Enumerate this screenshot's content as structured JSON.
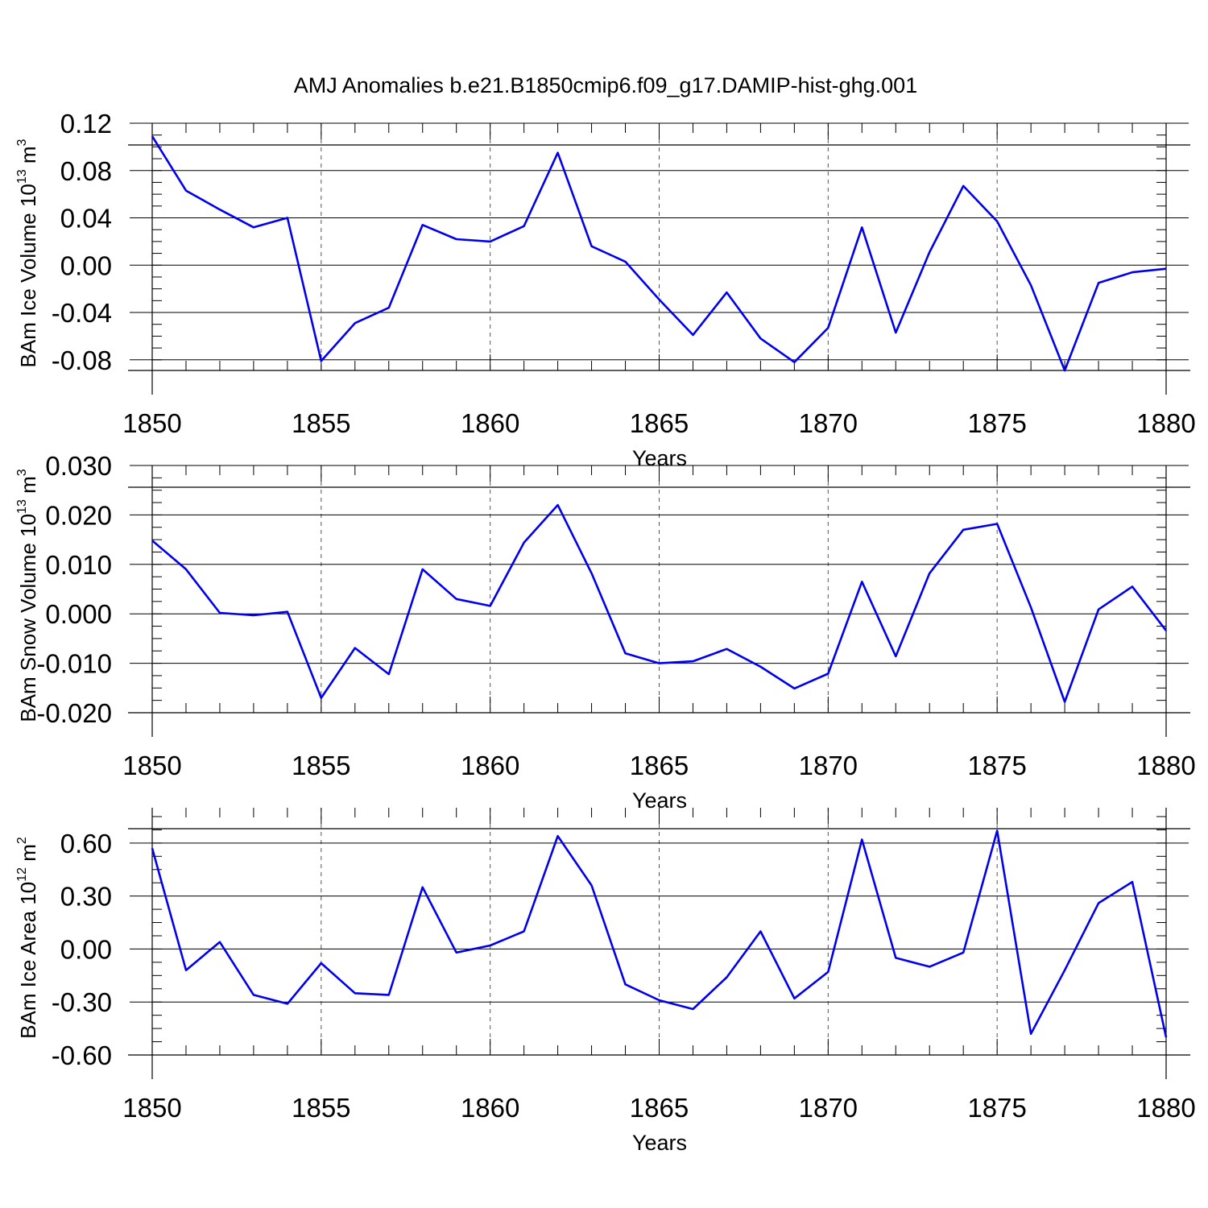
{
  "figure": {
    "title": "AMJ Anomalies b.e21.B1850cmip6.f09_g17.DAMIP-hist-ghg.001"
  },
  "chart_data": [
    {
      "type": "line",
      "ylabel": {
        "text": "BAm Ice Volume 10",
        "sup1": "13",
        "mid": " m",
        "sup2": "3"
      },
      "xlabel": "Years",
      "xlim": [
        1850,
        1880
      ],
      "ylim": [
        -0.089,
        0.12
      ],
      "xticks": [
        1850,
        1855,
        1860,
        1865,
        1870,
        1875,
        1880
      ],
      "yticks": [
        "0.12",
        "0.08",
        "0.04",
        "0.00",
        "-0.04",
        "-0.08"
      ],
      "ytick_values": [
        0.12,
        0.08,
        0.04,
        0.0,
        -0.04,
        -0.08
      ],
      "grid": "vertical dashed at major x ticks",
      "color": "#0000ee",
      "x": [
        1850,
        1851,
        1852,
        1853,
        1854,
        1855,
        1856,
        1857,
        1858,
        1859,
        1860,
        1861,
        1862,
        1863,
        1864,
        1865,
        1866,
        1867,
        1868,
        1869,
        1870,
        1871,
        1872,
        1873,
        1874,
        1875,
        1876,
        1877,
        1878,
        1879,
        1880
      ],
      "values": [
        0.109,
        0.063,
        0.047,
        0.032,
        0.04,
        -0.081,
        -0.049,
        -0.036,
        0.034,
        0.022,
        0.02,
        0.033,
        0.095,
        0.016,
        0.003,
        -0.029,
        -0.059,
        -0.023,
        -0.062,
        -0.082,
        -0.053,
        0.032,
        -0.057,
        0.011,
        0.067,
        0.037,
        -0.017,
        -0.089,
        -0.015,
        -0.006,
        -0.003
      ]
    },
    {
      "type": "line",
      "ylabel": {
        "text": "BAm Snow Volume 10",
        "sup1": "13",
        "mid": " m",
        "sup2": "3"
      },
      "xlabel": "Years",
      "xlim": [
        1850,
        1880
      ],
      "ylim": [
        -0.02,
        0.03
      ],
      "xticks": [
        1850,
        1855,
        1860,
        1865,
        1870,
        1875,
        1880
      ],
      "yticks": [
        "0.030",
        "0.020",
        "0.010",
        "0.000",
        "-0.010",
        "-0.020"
      ],
      "ytick_values": [
        0.03,
        0.02,
        0.01,
        0.0,
        -0.01,
        -0.02
      ],
      "grid": "vertical dashed at major x ticks",
      "color": "#0000ee",
      "x": [
        1850,
        1851,
        1852,
        1853,
        1854,
        1855,
        1856,
        1857,
        1858,
        1859,
        1860,
        1861,
        1862,
        1863,
        1864,
        1865,
        1866,
        1867,
        1868,
        1869,
        1870,
        1871,
        1872,
        1873,
        1874,
        1875,
        1876,
        1877,
        1878,
        1879,
        1880
      ],
      "values": [
        0.0148,
        0.009,
        0.0002,
        -0.0003,
        0.0004,
        -0.017,
        -0.0069,
        -0.0122,
        0.009,
        0.003,
        0.0016,
        0.0144,
        0.022,
        0.0082,
        -0.008,
        -0.01,
        -0.0096,
        -0.0071,
        -0.0107,
        -0.0151,
        -0.0121,
        0.0065,
        -0.0086,
        0.0082,
        0.017,
        0.0182,
        0.0013,
        -0.0178,
        0.0009,
        0.0055,
        -0.0034
      ]
    },
    {
      "type": "line",
      "ylabel": {
        "text": "BAm Ice Area 10",
        "sup1": "12",
        "mid": " m",
        "sup2": "2"
      },
      "xlabel": "Years",
      "xlim": [
        1850,
        1880
      ],
      "ylim": [
        -0.6,
        0.8
      ],
      "xticks": [
        1850,
        1855,
        1860,
        1865,
        1870,
        1875,
        1880
      ],
      "yticks": [
        "0.60",
        "0.30",
        "0.00",
        "-0.30",
        "-0.60"
      ],
      "ytick_values": [
        0.6,
        0.3,
        0.0,
        -0.3,
        -0.6
      ],
      "grid": "vertical dashed at major x ticks",
      "color": "#0000ee",
      "x": [
        1850,
        1851,
        1852,
        1853,
        1854,
        1855,
        1856,
        1857,
        1858,
        1859,
        1860,
        1861,
        1862,
        1863,
        1864,
        1865,
        1866,
        1867,
        1868,
        1869,
        1870,
        1871,
        1872,
        1873,
        1874,
        1875,
        1876,
        1877,
        1878,
        1879,
        1880
      ],
      "values": [
        0.57,
        -0.12,
        0.04,
        -0.26,
        -0.31,
        -0.08,
        -0.25,
        -0.26,
        0.35,
        -0.02,
        0.02,
        0.1,
        0.64,
        0.36,
        -0.2,
        -0.29,
        -0.34,
        -0.16,
        0.1,
        -0.28,
        -0.13,
        0.62,
        -0.05,
        -0.1,
        -0.02,
        0.67,
        -0.48,
        -0.12,
        0.26,
        0.38,
        -0.5
      ]
    }
  ]
}
